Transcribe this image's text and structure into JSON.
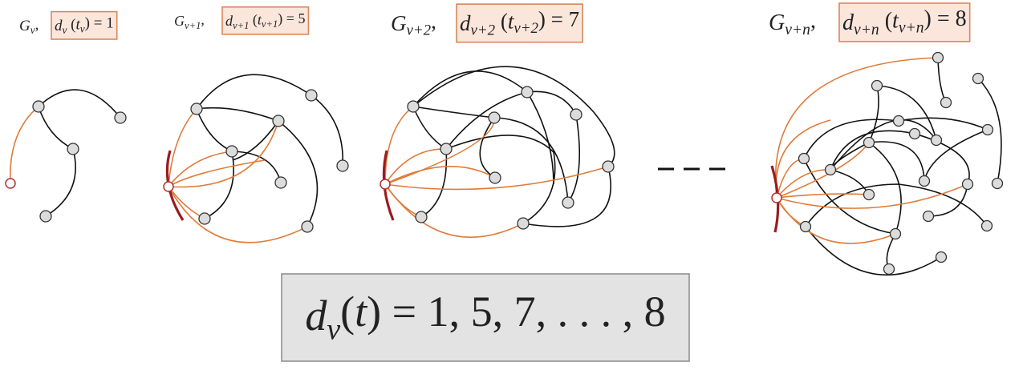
{
  "panels": [
    {
      "graph_label": [
        {
          "t": "G",
          "i": true
        },
        {
          "t": "v",
          "sub": true,
          "i": true
        },
        {
          "t": ","
        }
      ],
      "degree_label": [
        {
          "t": "d",
          "i": true
        },
        {
          "t": "v",
          "sub": true,
          "i": true
        },
        {
          "t": " ("
        },
        {
          "t": "t",
          "i": true
        },
        {
          "t": "v",
          "sub": true,
          "i": true
        },
        {
          "t": ") = 1"
        }
      ]
    },
    {
      "graph_label": [
        {
          "t": "G",
          "i": true
        },
        {
          "t": "v+1",
          "sub": true,
          "i": true
        },
        {
          "t": ","
        }
      ],
      "degree_label": [
        {
          "t": "d",
          "i": true
        },
        {
          "t": "v+1",
          "sub": true,
          "i": true
        },
        {
          "t": " ("
        },
        {
          "t": "t",
          "i": true
        },
        {
          "t": "v+1",
          "sub": true,
          "i": true
        },
        {
          "t": ") = 5"
        }
      ]
    },
    {
      "graph_label": [
        {
          "t": "G",
          "i": true
        },
        {
          "t": "v+2",
          "sub": true,
          "i": true
        },
        {
          "t": ","
        }
      ],
      "degree_label": [
        {
          "t": "d",
          "i": true
        },
        {
          "t": "v+2",
          "sub": true,
          "i": true
        },
        {
          "t": " ("
        },
        {
          "t": "t",
          "i": true
        },
        {
          "t": "v+2",
          "sub": true,
          "i": true
        },
        {
          "t": ") = 7"
        }
      ]
    },
    {
      "graph_label": [
        {
          "t": "G",
          "i": true
        },
        {
          "t": "v+n",
          "sub": true,
          "i": true
        },
        {
          "t": ","
        }
      ],
      "degree_label": [
        {
          "t": "d",
          "i": true
        },
        {
          "t": "v+n",
          "sub": true,
          "i": true
        },
        {
          "t": " ("
        },
        {
          "t": "t",
          "i": true
        },
        {
          "t": "v+n",
          "sub": true,
          "i": true
        },
        {
          "t": ") = 8"
        }
      ]
    }
  ],
  "sequence": [
    {
      "t": "d",
      "i": true
    },
    {
      "t": "v",
      "sub": true,
      "i": true
    },
    {
      "t": "("
    },
    {
      "t": "t",
      "i": true
    },
    {
      "t": ") = 1, 5, 7, . . . , 8"
    }
  ]
}
